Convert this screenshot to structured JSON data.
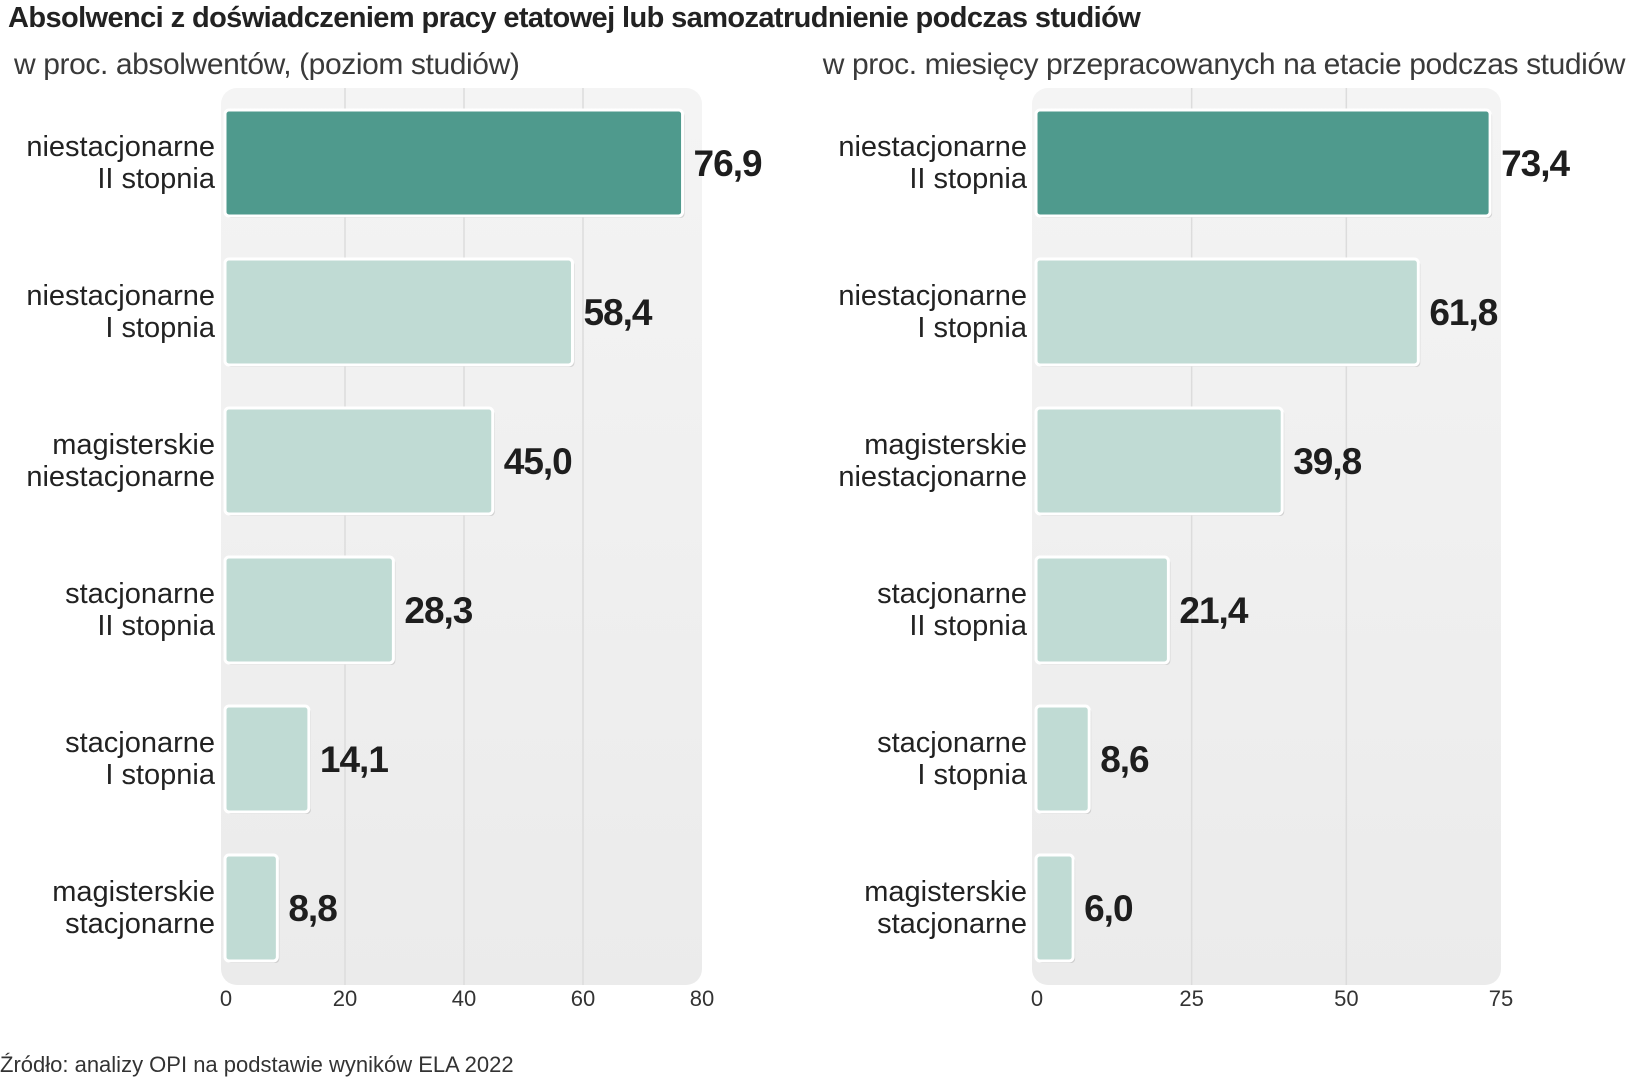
{
  "title": "Absolwenci z doświadczeniem pracy etatowej lub samozatrudnienie podczas studiów",
  "source": "Źródło: analizy OPI na podstawie wyników ELA 2022",
  "colors": {
    "highlight": "#4f9a8d",
    "bar": "#c0dbd4",
    "panel": "#f0f0f0",
    "grid": "#dcdcdc"
  },
  "chart_data": [
    {
      "type": "bar",
      "orientation": "horizontal",
      "subtitle": "w proc. absolwentów, (poziom studiów)",
      "categories": [
        "niestacjonarne II stopnia",
        "niestacjonarne I stopnia",
        "magisterskie niestacjonarne",
        "stacjonarne II stopnia",
        "stacjonarne I stopnia",
        "magisterskie stacjonarne"
      ],
      "values": [
        76.9,
        58.4,
        45.0,
        28.3,
        14.1,
        8.8
      ],
      "value_labels": [
        "76,9",
        "58,4",
        "45,0",
        "28,3",
        "14,1",
        "8,8"
      ],
      "xlim": [
        0,
        80
      ],
      "xticks": [
        0,
        20,
        40,
        60,
        80
      ],
      "grid": true,
      "legend": "none"
    },
    {
      "type": "bar",
      "orientation": "horizontal",
      "subtitle": "w proc. miesięcy przepracowanych na etacie podczas studiów",
      "categories": [
        "niestacjonarne II stopnia",
        "niestacjonarne I stopnia",
        "magisterskie niestacjonarne",
        "stacjonarne II stopnia",
        "stacjonarne I stopnia",
        "magisterskie stacjonarne"
      ],
      "values": [
        73.4,
        61.8,
        39.8,
        21.4,
        8.6,
        6.0
      ],
      "value_labels": [
        "73,4",
        "61,8",
        "39,8",
        "21,4",
        "8,6",
        "6,0"
      ],
      "xlim": [
        0,
        75
      ],
      "xticks": [
        0,
        25,
        50,
        75
      ],
      "grid": true,
      "legend": "none"
    }
  ],
  "category_lines": [
    [
      "niestacjonarne",
      "II stopnia"
    ],
    [
      "niestacjonarne",
      "I stopnia"
    ],
    [
      "magisterskie",
      "niestacjonarne"
    ],
    [
      "stacjonarne",
      "II stopnia"
    ],
    [
      "stacjonarne",
      "I stopnia"
    ],
    [
      "magisterskie",
      "stacjonarne"
    ]
  ]
}
